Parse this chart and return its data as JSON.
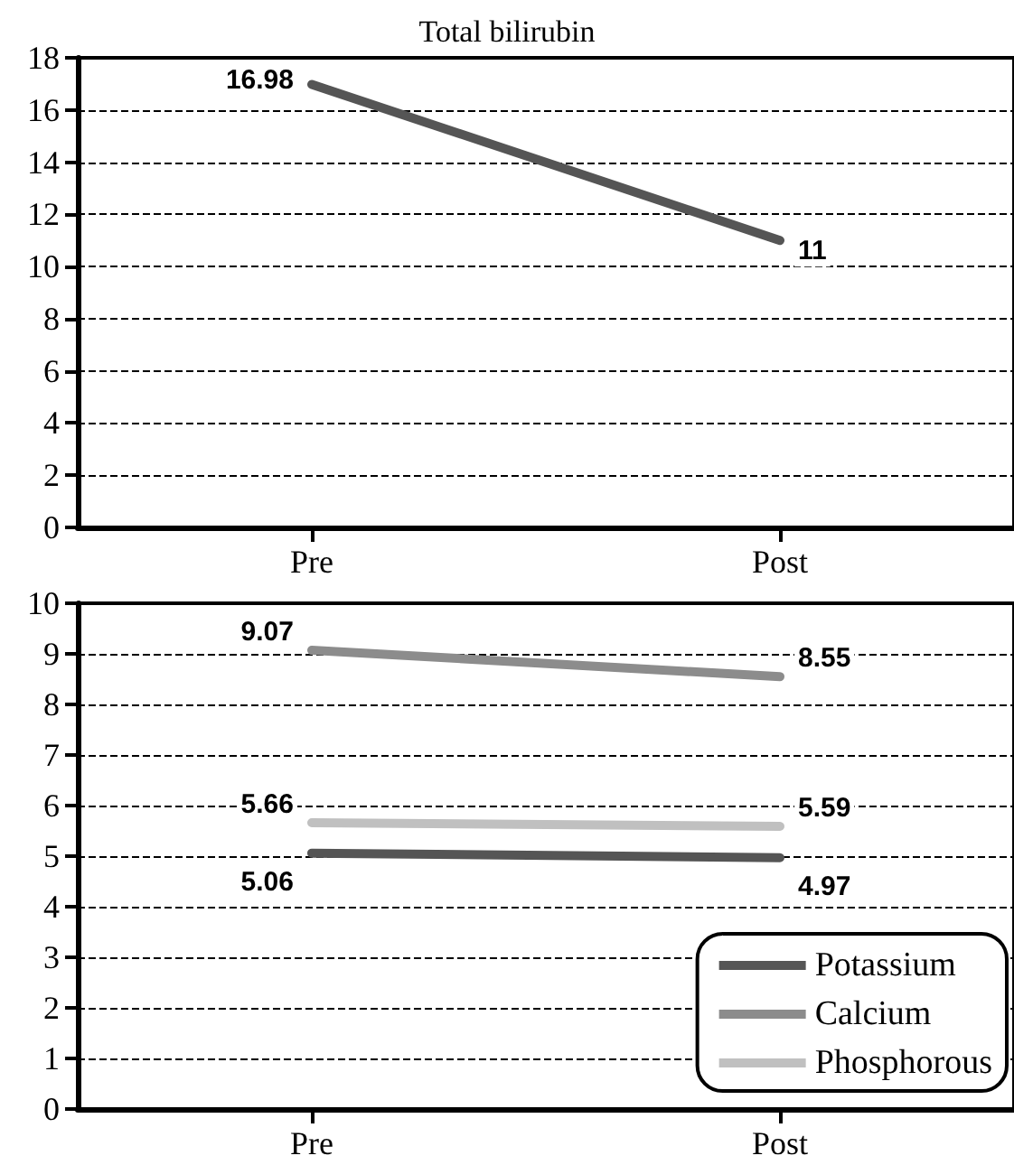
{
  "chart_data": [
    {
      "type": "line",
      "title": "Total bilirubin",
      "categories": [
        "Pre",
        "Post"
      ],
      "series": [
        {
          "color": "#555555",
          "values": [
            16.98,
            11
          ]
        }
      ],
      "ylim": [
        0,
        18
      ],
      "yticks": [
        0,
        2,
        4,
        6,
        8,
        10,
        12,
        14,
        16,
        18
      ],
      "grid": "y",
      "data_labels": true,
      "marker": "none",
      "line_style": "solid",
      "legend": false
    },
    {
      "type": "line",
      "categories": [
        "Pre",
        "Post"
      ],
      "series": [
        {
          "name": "Potassium",
          "color": "#555555",
          "values": [
            5.06,
            4.97
          ]
        },
        {
          "name": "Calcium",
          "color": "#8c8c8c",
          "values": [
            9.07,
            8.55
          ]
        },
        {
          "name": "Phosphorous",
          "color": "#c0c0c0",
          "values": [
            5.66,
            5.59
          ]
        }
      ],
      "ylim": [
        0,
        10
      ],
      "yticks": [
        0,
        1,
        2,
        3,
        4,
        5,
        6,
        7,
        8,
        9,
        10
      ],
      "grid": "y",
      "data_labels": true,
      "marker": "none",
      "line_style": "solid",
      "legend": "bottom right"
    }
  ]
}
